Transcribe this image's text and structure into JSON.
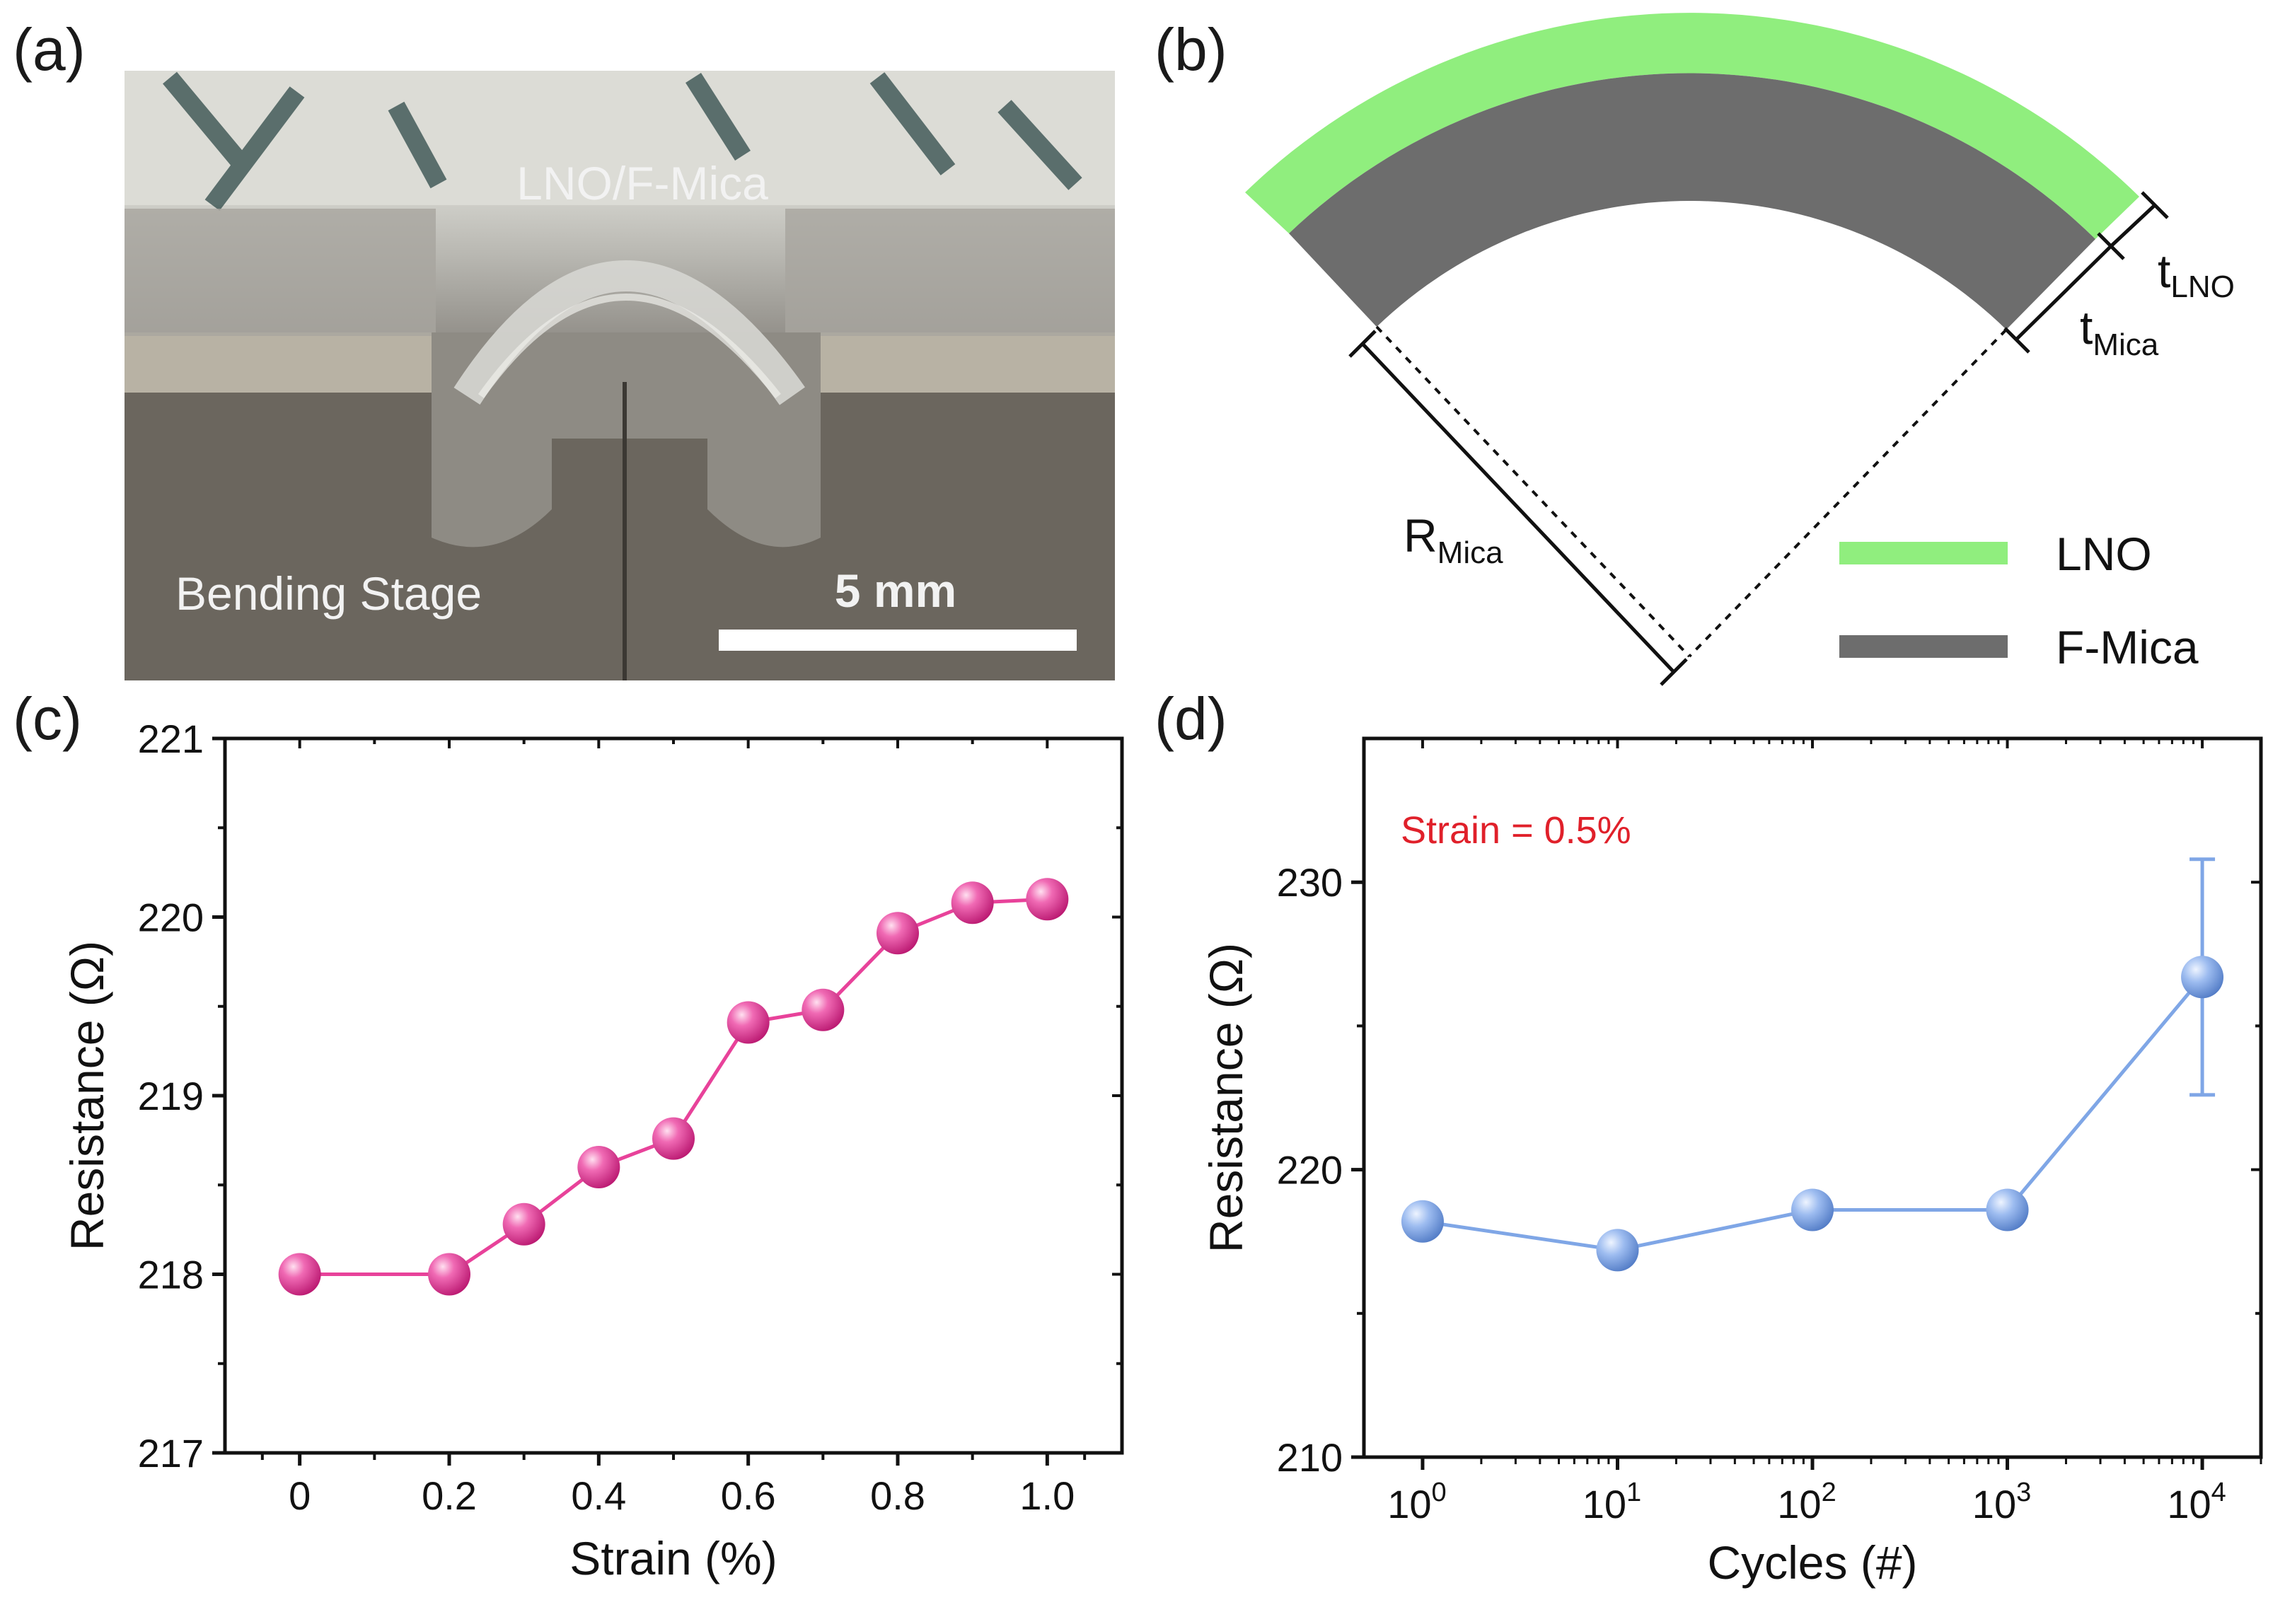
{
  "panels": {
    "a": "(a)",
    "b": "(b)",
    "c": "(c)",
    "d": "(d)"
  },
  "photo": {
    "sample_label": "LNO/F-Mica",
    "stage_label": "Bending Stage",
    "scalebar_label": "5 mm"
  },
  "diagram": {
    "t_lno_main": "t",
    "t_lno_sub": "LNO",
    "t_mica_main": "t",
    "t_mica_sub": "Mica",
    "r_mica_main": "R",
    "r_mica_sub": "Mica",
    "legend": [
      {
        "label": "LNO",
        "color": "#90ee7e"
      },
      {
        "label": "F-Mica",
        "color": "#6d6d6d"
      }
    ]
  },
  "chart_data": [
    {
      "type": "line",
      "panel": "c",
      "xlabel": "Strain (%)",
      "ylabel": "Resistance (Ω)",
      "xlim": [
        -0.1,
        1.1
      ],
      "ylim": [
        217,
        221
      ],
      "xticks": [
        0,
        0.2,
        0.4,
        0.6,
        0.8,
        1.0
      ],
      "xtick_labels": [
        "0",
        "0.2",
        "0.4",
        "0.6",
        "0.8",
        "1.0"
      ],
      "yticks": [
        217,
        218,
        219,
        220,
        221
      ],
      "ytick_labels": [
        "217",
        "218",
        "219",
        "220",
        "221"
      ],
      "marker_color": "#e8429a",
      "line_color": "#e8429a",
      "x": [
        0,
        0.2,
        0.3,
        0.4,
        0.5,
        0.6,
        0.7,
        0.8,
        0.9,
        1.0
      ],
      "y": [
        218.0,
        218.0,
        218.28,
        218.6,
        218.76,
        219.41,
        219.48,
        219.91,
        220.08,
        220.1
      ]
    },
    {
      "type": "line",
      "panel": "d",
      "xlabel": "Cycles (#)",
      "ylabel": "Resistance (Ω)",
      "xscale": "log",
      "xlim": [
        0.5,
        20000
      ],
      "ylim": [
        210,
        235
      ],
      "xticks": [
        1,
        10,
        100,
        1000,
        10000
      ],
      "xtick_base": "10",
      "xtick_exponents": [
        "0",
        "1",
        "2",
        "3",
        "4"
      ],
      "yticks": [
        210,
        220,
        230
      ],
      "ytick_labels": [
        "210",
        "220",
        "230"
      ],
      "annotation": "Strain = 0.5%",
      "annotation_color": "#e0202a",
      "marker_color": "#7fa6e6",
      "line_color": "#7fa6e6",
      "x": [
        1,
        10,
        100,
        1000,
        10000
      ],
      "y": [
        218.2,
        217.2,
        218.6,
        218.6,
        226.7
      ],
      "yerr": [
        0,
        0,
        0,
        0,
        4.1
      ]
    }
  ]
}
